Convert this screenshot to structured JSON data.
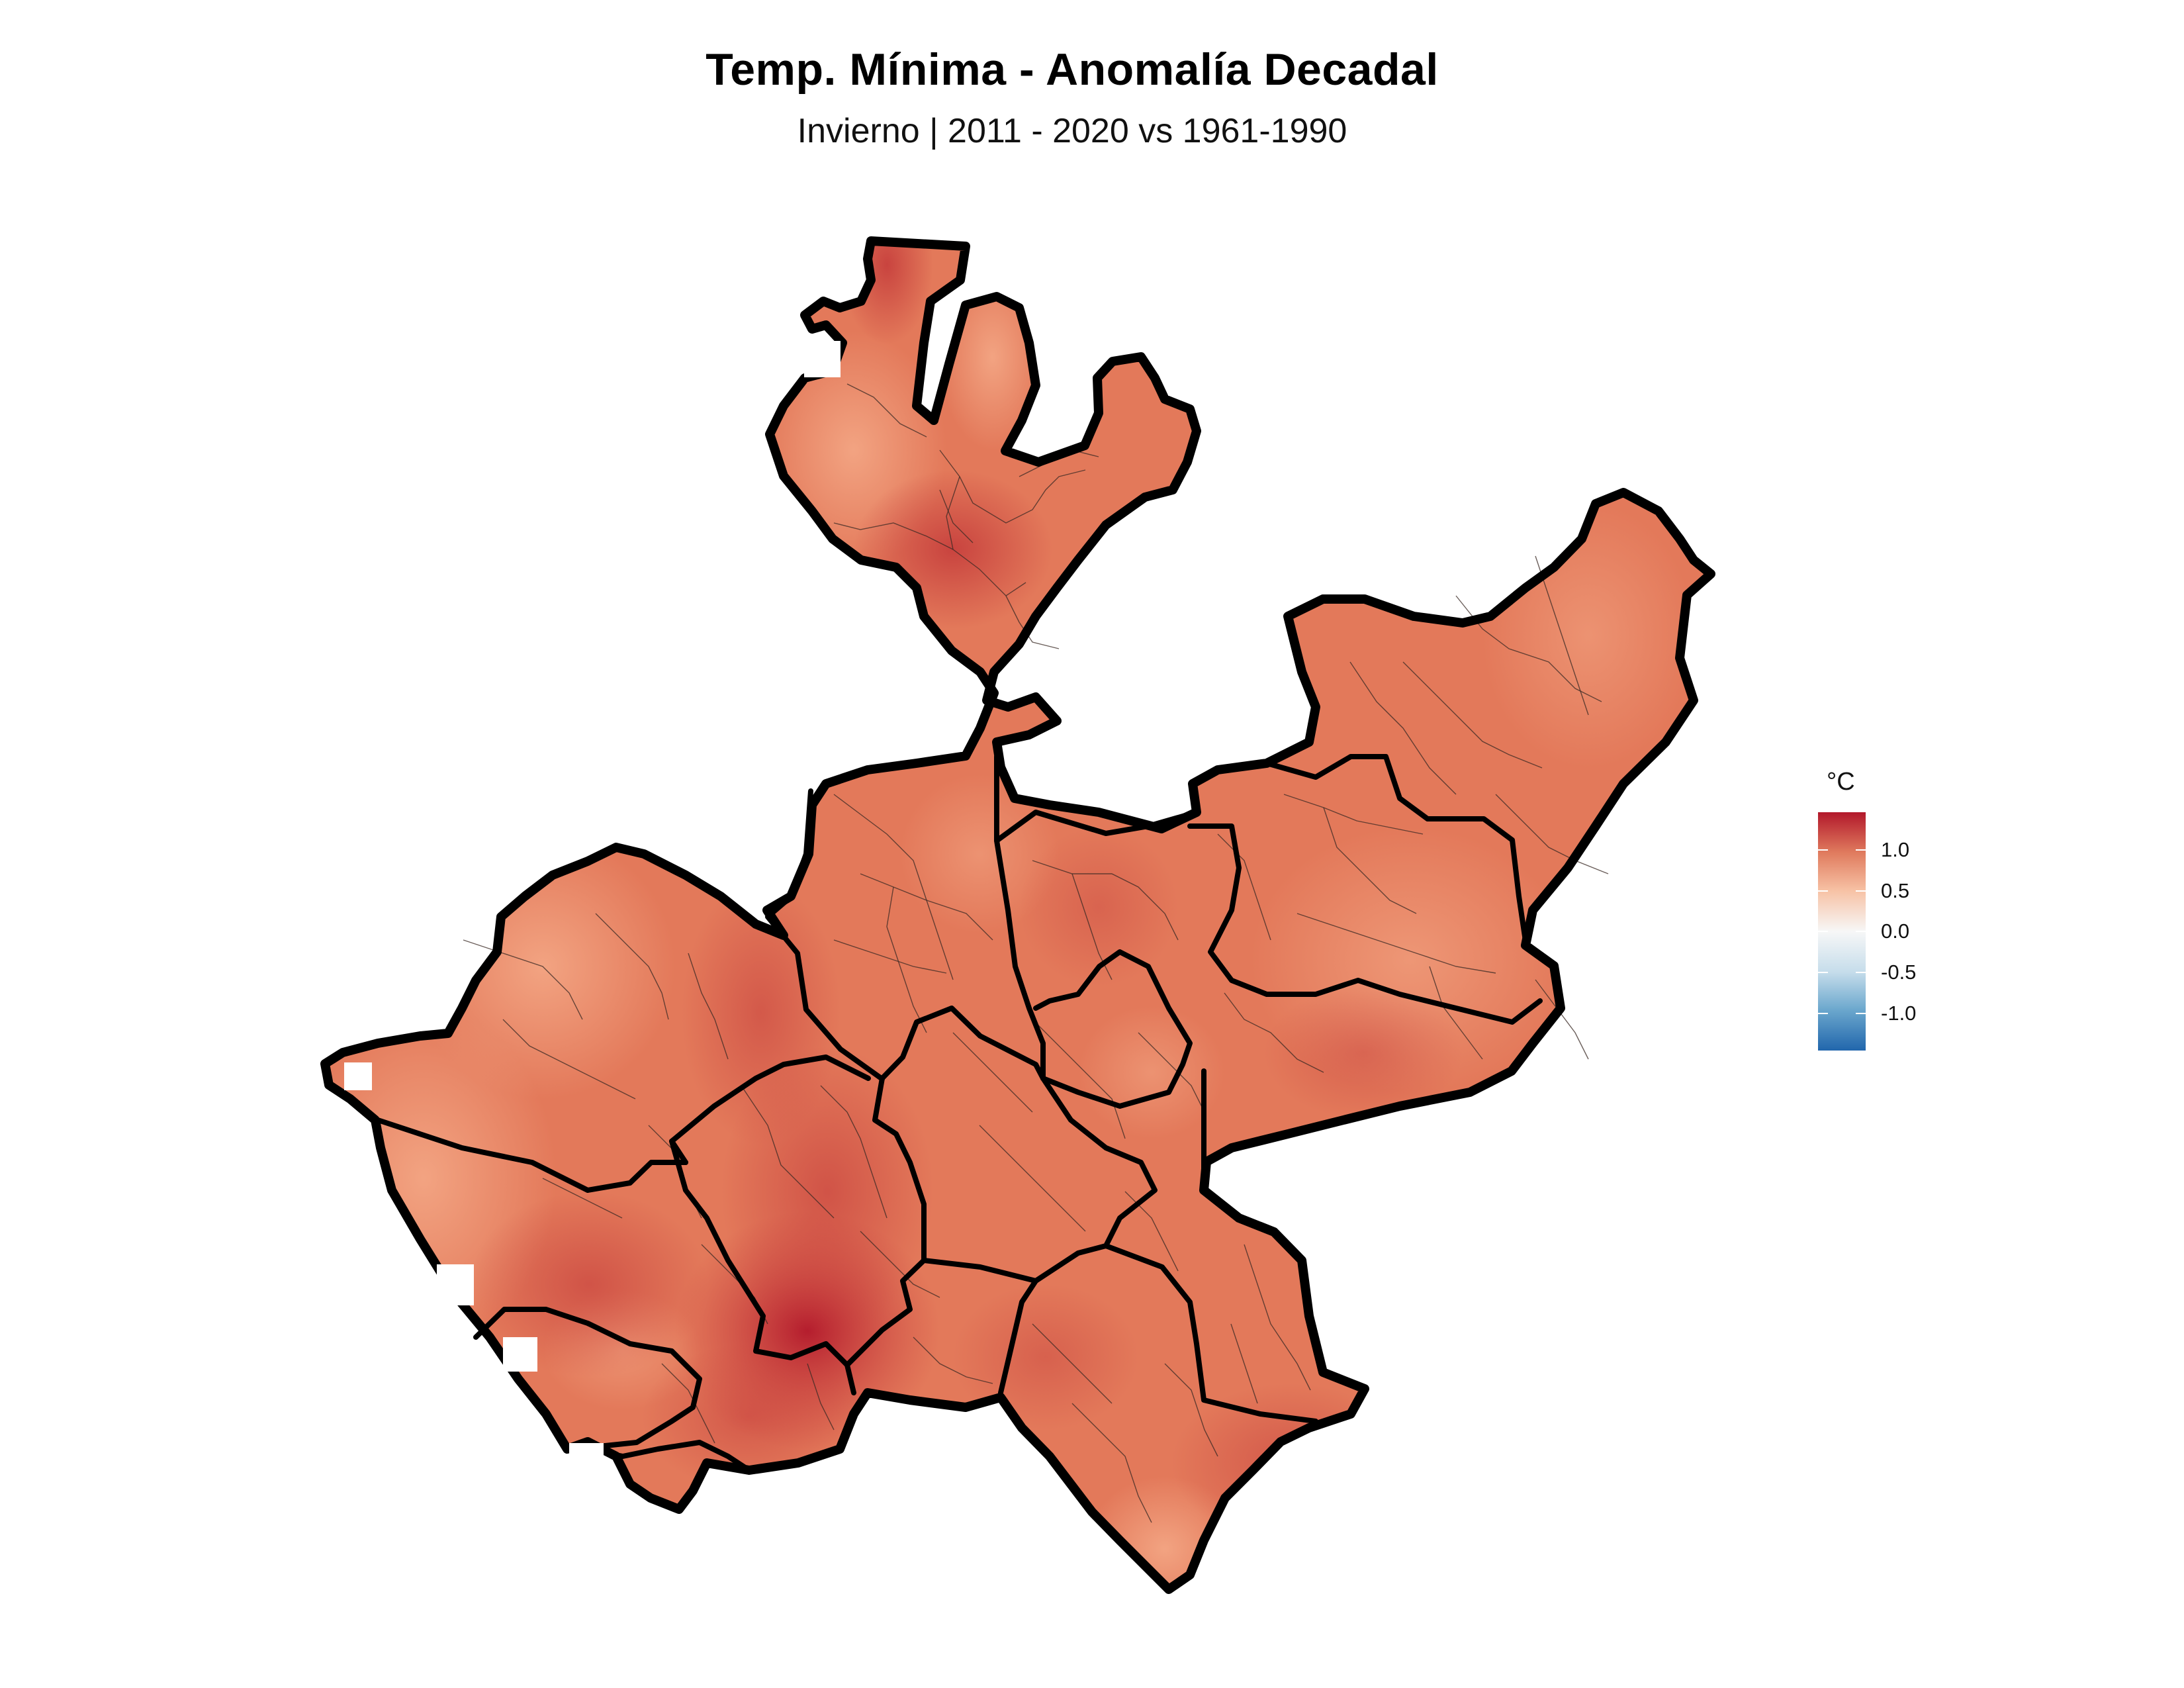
{
  "header": {
    "title": "Temp. Mínima - Anomalía Decadal",
    "subtitle": "Invierno | 2011 - 2020 vs 1961-1990"
  },
  "legend": {
    "title": "°C",
    "ticks": [
      "1.0",
      "0.5",
      "0.0",
      "-0.5",
      "-1.0"
    ],
    "colors": {
      "max": "#B2182B",
      "high": "#EF8A62",
      "mid_high": "#FDDBC7",
      "zero": "#F7F7F7",
      "mid_low": "#D1E5F0",
      "low": "#67A9CF",
      "min": "#2166AC"
    }
  },
  "chart_data": {
    "type": "heatmap",
    "title": "Temp. Mínima - Anomalía Decadal",
    "subtitle": "Invierno | 2011 - 2020 vs 1961-1990",
    "xlabel": "",
    "ylabel": "",
    "legend_title": "°C",
    "legend_position": "right",
    "color_scale": "diverging red-white-blue (RdBu)",
    "scale_range": [
      -1.45,
      1.45
    ],
    "legend_ticks": [
      1.0,
      0.5,
      0.0,
      -0.5,
      -1.0
    ],
    "grid": false,
    "map_region": "Jalisco state, regional (thick) and municipal (thin) boundaries",
    "value_summary": {
      "typical_anomaly": 1.0,
      "min_observed_approx": 0.7,
      "max_observed_approx": 1.45,
      "hotspots": [
        {
          "area": "south-central (sierra/southern region)",
          "value_approx": 1.45
        },
        {
          "area": "north lobe (northern tip)",
          "value_approx": 1.3
        },
        {
          "area": "north region center",
          "value_approx": 1.25
        },
        {
          "area": "west-central",
          "value_approx": 1.25
        },
        {
          "area": "southeast",
          "value_approx": 1.2
        }
      ],
      "cooler_areas": [
        {
          "area": "west coast",
          "value_approx": 0.75
        },
        {
          "area": "northeast (Altos)",
          "value_approx": 0.9
        },
        {
          "area": "southern tip",
          "value_approx": 0.8
        }
      ]
    }
  }
}
